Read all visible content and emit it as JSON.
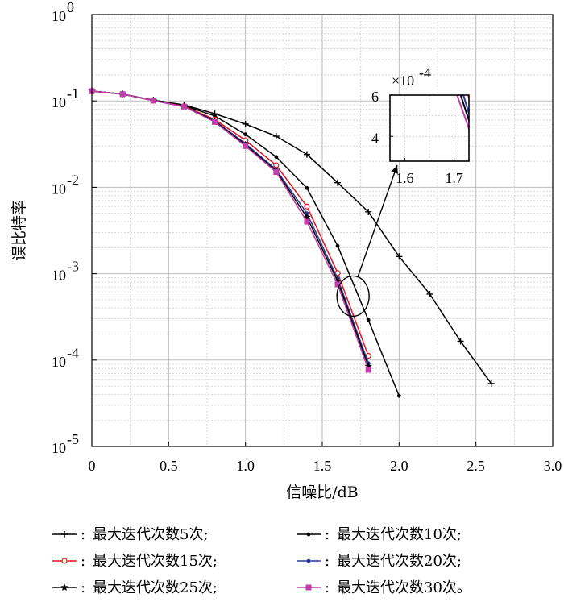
{
  "chart_data": {
    "type": "line",
    "xlabel": "信噪比/dB",
    "ylabel": "误比特率",
    "xlim": [
      0,
      3.0
    ],
    "ylim": [
      1e-05,
      1
    ],
    "yscale": "log",
    "grid": true,
    "x_ticks": [
      "0",
      "0.5",
      "1.0",
      "1.5",
      "2.0",
      "2.5",
      "3.0"
    ],
    "y_ticks": [
      {
        "base": "10",
        "exp": "0"
      },
      {
        "base": "10",
        "exp": "-1"
      },
      {
        "base": "10",
        "exp": "-2"
      },
      {
        "base": "10",
        "exp": "-3"
      },
      {
        "base": "10",
        "exp": "-4"
      },
      {
        "base": "10",
        "exp": "-5"
      }
    ],
    "series": [
      {
        "name": "最大迭代次数5次",
        "color": "#000000",
        "marker": "plus",
        "x": [
          0,
          0.2,
          0.4,
          0.6,
          0.8,
          1.0,
          1.2,
          1.4,
          1.6,
          1.8,
          2.0,
          2.2,
          2.4,
          2.6
        ],
        "y": [
          0.13,
          0.12,
          0.102,
          0.09,
          0.071,
          0.054,
          0.039,
          0.024,
          0.0113,
          0.0052,
          0.00158,
          0.00058,
          0.000165,
          5.35e-05
        ]
      },
      {
        "name": "最大迭代次数10次",
        "color": "#000000",
        "marker": "dot",
        "x": [
          0,
          0.2,
          0.4,
          0.6,
          0.8,
          1.0,
          1.2,
          1.4,
          1.6,
          1.8,
          2.0
        ],
        "y": [
          0.13,
          0.12,
          0.101,
          0.088,
          0.067,
          0.041,
          0.0225,
          0.0098,
          0.0021,
          0.00029,
          3.85e-05
        ]
      },
      {
        "name": "最大迭代次数15次",
        "color": "#e0141c",
        "marker": "circle",
        "x": [
          0,
          0.2,
          0.4,
          0.6,
          0.8,
          1.0,
          1.2,
          1.4,
          1.6,
          1.8
        ],
        "y": [
          0.13,
          0.12,
          0.101,
          0.087,
          0.061,
          0.035,
          0.018,
          0.006,
          0.00102,
          0.000112
        ]
      },
      {
        "name": "最大迭代次数20次",
        "color": "#2b3a9c",
        "marker": "dot",
        "x": [
          0,
          0.2,
          0.4,
          0.6,
          0.8,
          1.0,
          1.2,
          1.4,
          1.6,
          1.8
        ],
        "y": [
          0.13,
          0.12,
          0.101,
          0.086,
          0.059,
          0.032,
          0.016,
          0.005,
          0.00088,
          9.2e-05
        ]
      },
      {
        "name": "最大迭代次数25次",
        "color": "#000000",
        "marker": "star",
        "x": [
          0,
          0.2,
          0.4,
          0.6,
          0.8,
          1.0,
          1.2,
          1.4,
          1.6,
          1.8
        ],
        "y": [
          0.13,
          0.12,
          0.101,
          0.086,
          0.058,
          0.031,
          0.0155,
          0.0045,
          0.00082,
          8.5e-05
        ]
      },
      {
        "name": "最大迭代次数30次",
        "color": "#c13dab",
        "marker": "square",
        "x": [
          0,
          0.2,
          0.4,
          0.6,
          0.8,
          1.0,
          1.2,
          1.4,
          1.6,
          1.8
        ],
        "y": [
          0.13,
          0.12,
          0.101,
          0.086,
          0.057,
          0.03,
          0.015,
          0.004,
          0.00075,
          7.7e-05
        ]
      }
    ],
    "inset": {
      "scale_label_base": "×10",
      "scale_label_exp": "-4",
      "x_ticks": [
        "1.6",
        "1.7"
      ],
      "y_ticks": [
        "6",
        "4"
      ],
      "xlim": [
        1.57,
        1.73
      ],
      "ylim": [
        2.8,
        6.0
      ]
    },
    "legend": [
      {
        "prefix": ":",
        "text": "最大迭代次数5次;"
      },
      {
        "prefix": ":",
        "text": "最大迭代次数10次;"
      },
      {
        "prefix": ":",
        "text": "最大迭代次数15次;"
      },
      {
        "prefix": ":",
        "text": "最大迭代次数20次;"
      },
      {
        "prefix": ":",
        "text": "最大迭代次数25次;"
      },
      {
        "prefix": ":",
        "text": "最大迭代次数30次。"
      }
    ]
  }
}
